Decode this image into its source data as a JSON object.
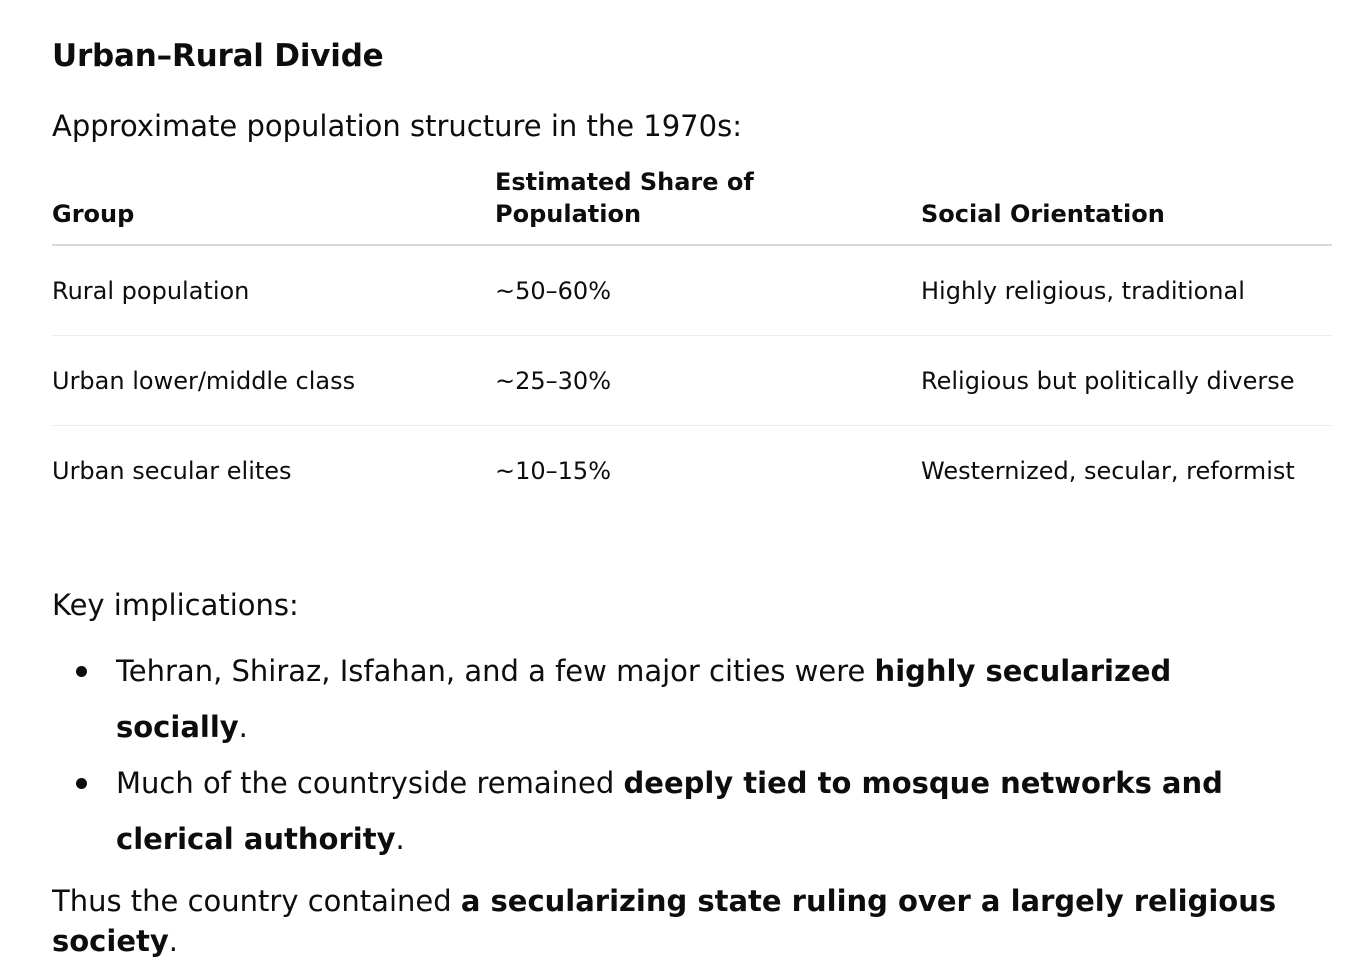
{
  "heading": "Urban–Rural Divide",
  "intro": "Approximate population structure in the 1970s:",
  "table": {
    "headers": [
      "Group",
      "Estimated Share of Population",
      "Social Orientation"
    ],
    "rows": [
      [
        "Rural population",
        "~50–60%",
        "Highly religious, traditional"
      ],
      [
        "Urban lower/middle class",
        "~25–30%",
        "Religious but politically diverse"
      ],
      [
        "Urban secular elites",
        "~10–15%",
        "Westernized, secular, reformist"
      ]
    ]
  },
  "key_label": "Key implications:",
  "implications": [
    {
      "prefix": "Tehran, Shiraz, Isfahan, and a few major cities were ",
      "bold": "highly secularized socially",
      "suffix": "."
    },
    {
      "prefix": "Much of the countryside remained ",
      "bold": "deeply tied to mosque networks and clerical authority",
      "suffix": "."
    }
  ],
  "summary": {
    "prefix": "Thus the country contained ",
    "bold": "a secularizing state ruling over a largely religious society",
    "suffix": "."
  }
}
